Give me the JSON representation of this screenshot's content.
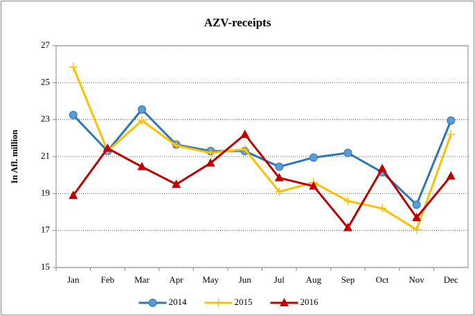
{
  "chart_data": {
    "type": "line",
    "title": "AZV-receipts",
    "y_label": "In Afl. million",
    "categories": [
      "Jan",
      "Feb",
      "Mar",
      "Apr",
      "May",
      "Jun",
      "Jul",
      "Aug",
      "Sep",
      "Oct",
      "Nov",
      "Dec"
    ],
    "series": [
      {
        "name": "2014",
        "color": "#2e75b6",
        "marker": "circle",
        "values": [
          23.25,
          21.3,
          23.55,
          21.65,
          21.3,
          21.3,
          20.45,
          20.95,
          21.2,
          20.15,
          18.4,
          22.95
        ]
      },
      {
        "name": "2015",
        "color": "#ffc000",
        "marker": "plus",
        "values": [
          25.85,
          21.3,
          22.95,
          21.6,
          21.2,
          21.4,
          19.1,
          19.6,
          18.6,
          18.2,
          17.05,
          22.2
        ]
      },
      {
        "name": "2016",
        "color": "#c00000",
        "marker": "triangle",
        "values": [
          18.9,
          21.45,
          20.45,
          19.5,
          20.65,
          22.2,
          19.85,
          19.4,
          17.15,
          20.35,
          17.7,
          19.95
        ]
      }
    ],
    "ylim": [
      15,
      27
    ],
    "yticks": [
      15,
      17,
      19,
      21,
      23,
      25,
      27
    ],
    "grid": true,
    "legend": "bottom"
  }
}
